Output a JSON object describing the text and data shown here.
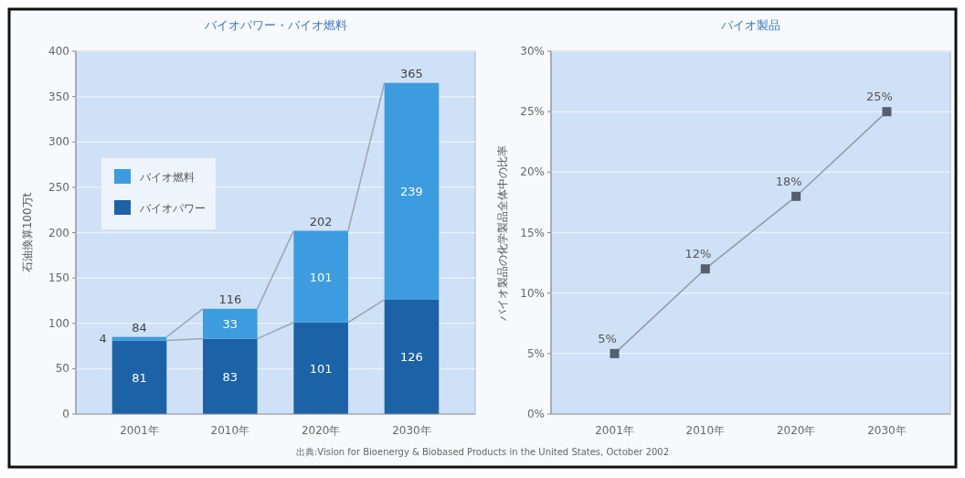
{
  "chart_data": [
    {
      "type": "bar",
      "stacked": true,
      "title": "バイオパワー・バイオ燃料",
      "ylabel": "石油換算100万t",
      "categories": [
        "2001年",
        "2010年",
        "2020年",
        "2030年"
      ],
      "series": [
        {
          "name": "バイオパワー",
          "color": "#1b63a6",
          "values": [
            81,
            83,
            101,
            126
          ]
        },
        {
          "name": "バイオ燃料",
          "color": "#3d9be0",
          "values": [
            4,
            33,
            101,
            239
          ]
        }
      ],
      "totals": [
        "84",
        "116",
        "202",
        "365"
      ],
      "data_labels": true,
      "ylim": [
        0,
        400
      ],
      "yticks": [
        0,
        50,
        100,
        150,
        200,
        250,
        300,
        350,
        400
      ],
      "grid": "y",
      "legend": "left",
      "annotations": [
        "出典:Vision for Bioenergy & Biobased Products in the United States, October 2002"
      ]
    },
    {
      "type": "line",
      "title": "バイオ製品",
      "ylabel": "バイオ製品の化学製品全体中の比率",
      "categories": [
        "2001年",
        "2010年",
        "2020年",
        "2030年"
      ],
      "series": [
        {
          "color": "#555f6e",
          "values": [
            5,
            12,
            18,
            25
          ],
          "value_labels": [
            "5%",
            "12%",
            "18%",
            "25%"
          ]
        }
      ],
      "marker": "square",
      "ylim": [
        0,
        30
      ],
      "yticks": [
        {
          "value": 0,
          "label": "0%"
        },
        {
          "value": 5,
          "label": "5%"
        },
        {
          "value": 10,
          "label": "10%"
        },
        {
          "value": 15,
          "label": "15%"
        },
        {
          "value": 20,
          "label": "20%"
        },
        {
          "value": 25,
          "label": "25%"
        },
        {
          "value": 30,
          "label": "30%"
        }
      ],
      "grid": "y"
    }
  ]
}
